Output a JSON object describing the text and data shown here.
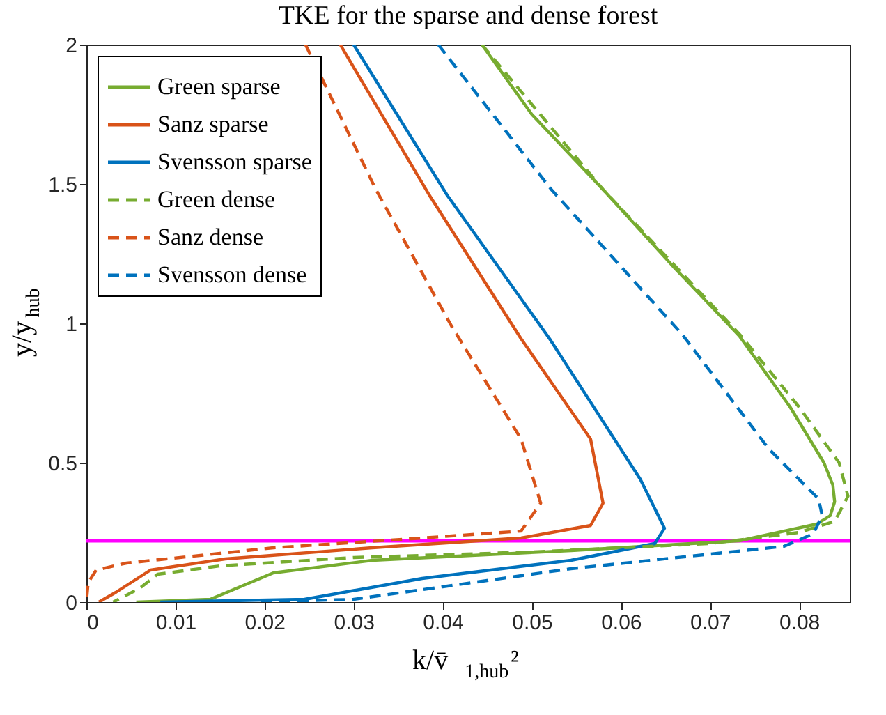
{
  "chart_data": {
    "type": "line",
    "title": "TKE for the sparse and dense forest",
    "xlabel": "k/v̄$_{1,hub}$²",
    "ylabel": "y/y$_{hub}$",
    "xlim": [
      0,
      0.0857
    ],
    "ylim": [
      0,
      2
    ],
    "xticks": [
      0,
      0.01,
      0.02,
      0.03,
      0.04,
      0.05,
      0.06,
      0.07,
      0.08
    ],
    "yticks": [
      0,
      0.5,
      1,
      1.5,
      2
    ],
    "grid": false,
    "legend": "top left",
    "marker": "none",
    "ref_lines": [
      {
        "axis": "y",
        "value": 0.22,
        "color": "#ff00ff",
        "line_style": "solid"
      }
    ],
    "series": [
      {
        "name": "Green sparse",
        "color": "#77ac30",
        "line_style": "solid",
        "x": [
          0.0444,
          0.05,
          0.058,
          0.066,
          0.0733,
          0.079,
          0.0828,
          0.0838,
          0.084,
          0.0835,
          0.082,
          0.0733,
          0.0544,
          0.0321,
          0.021,
          0.0139,
          0.0056
        ],
        "values": [
          2,
          1.75,
          1.48,
          1.2,
          0.955,
          0.7,
          0.5,
          0.42,
          0.36,
          0.31,
          0.28,
          0.22,
          0.185,
          0.15,
          0.105,
          0.01,
          0
        ]
      },
      {
        "name": "Sanz sparse",
        "color": "#d95319",
        "line_style": "solid",
        "x": [
          0.0285,
          0.0385,
          0.0488,
          0.0566,
          0.058,
          0.0566,
          0.0488,
          0.0321,
          0.0156,
          0.0072,
          0.0033,
          0.0014
        ],
        "values": [
          2,
          1.46,
          0.945,
          0.585,
          0.355,
          0.275,
          0.23,
          0.195,
          0.155,
          0.115,
          0.035,
          0
        ]
      },
      {
        "name": "Svensson sparse",
        "color": "#0072bd",
        "line_style": "solid",
        "x": [
          0.03,
          0.0405,
          0.052,
          0.0622,
          0.0649,
          0.0638,
          0.0544,
          0.0377,
          0.0245,
          0.0083
        ],
        "values": [
          2,
          1.46,
          0.945,
          0.44,
          0.265,
          0.21,
          0.15,
          0.085,
          0.01,
          0
        ]
      },
      {
        "name": "Green dense",
        "color": "#77ac30",
        "line_style": "dashed",
        "x": [
          0.0444,
          0.058,
          0.0735,
          0.08,
          0.0845,
          0.0855,
          0.084,
          0.08,
          0.07,
          0.05,
          0.03,
          0.015,
          0.008,
          0.006,
          0.003
        ],
        "values": [
          2,
          1.48,
          0.955,
          0.7,
          0.5,
          0.38,
          0.29,
          0.25,
          0.21,
          0.18,
          0.16,
          0.13,
          0.1,
          0.05,
          0
        ]
      },
      {
        "name": "Sanz dense",
        "color": "#d95319",
        "line_style": "dashed",
        "x": [
          0.0246,
          0.0325,
          0.041,
          0.0488,
          0.051,
          0.0488,
          0.0377,
          0.021,
          0.0045,
          0.0011,
          0.0002,
          0
        ],
        "values": [
          2,
          1.48,
          0.99,
          0.585,
          0.355,
          0.255,
          0.23,
          0.195,
          0.14,
          0.115,
          0.07,
          0
        ]
      },
      {
        "name": "Svensson dense",
        "color": "#0072bd",
        "line_style": "dashed",
        "x": [
          0.0395,
          0.0522,
          0.0669,
          0.0766,
          0.0822,
          0.0826,
          0.0816,
          0.0783,
          0.0544,
          0.03,
          0.019
        ],
        "values": [
          2,
          1.48,
          0.96,
          0.55,
          0.37,
          0.31,
          0.245,
          0.2,
          0.12,
          0.01,
          0
        ]
      }
    ]
  }
}
